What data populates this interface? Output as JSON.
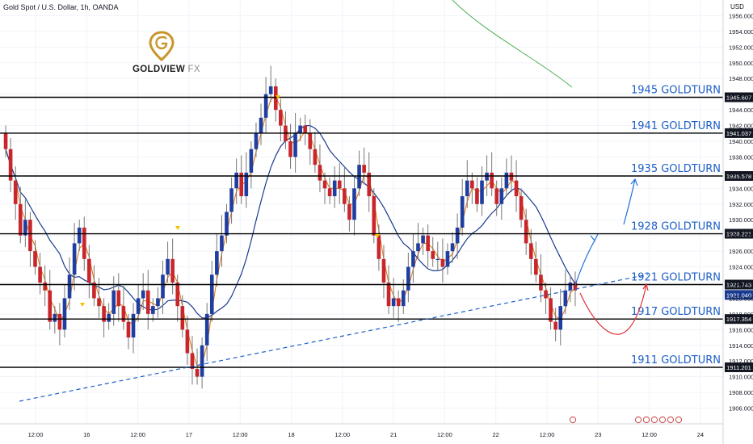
{
  "header": {
    "symbol_line": "Gold Spot / U.S. Dollar, 1h, OANDA",
    "currency": "USD"
  },
  "logo": {
    "brand_main": "GOLDVIEW",
    "brand_suffix": "FX"
  },
  "colors": {
    "bull": "#1f3ea0",
    "bear": "#c8262b",
    "ma_fast": "#e07b1a",
    "ma_slow": "#1a3a8f",
    "ma_long": "#4caf50",
    "annotation": "#1e5fc7",
    "level_line": "#000000",
    "projection_up": "#1e6fd9",
    "projection_dip": "#e0333b"
  },
  "chart_data": {
    "type": "candlestick",
    "title": "Gold Spot / U.S. Dollar, 1h, OANDA",
    "ylim": [
      1904,
      1958
    ],
    "y_ticks": [
      1906,
      1908,
      1910,
      1912,
      1914,
      1916,
      1918,
      1920,
      1922,
      1924,
      1926,
      1928,
      1930,
      1932,
      1934,
      1936,
      1938,
      1940,
      1942,
      1944,
      1946,
      1948,
      1950,
      1952,
      1954,
      1956
    ],
    "x_ticks": [
      "12:00",
      "16",
      "12:00",
      "17",
      "12:00",
      "18",
      "12:00",
      "21",
      "12:00",
      "22",
      "12:00",
      "23",
      "12:00",
      "24"
    ],
    "levels": [
      {
        "label": "1945 GOLDTURN",
        "price": "1945.607",
        "value": 1945.607
      },
      {
        "label": "1941 GOLDTURN",
        "price": "1941.037",
        "value": 1941.037
      },
      {
        "label": "1935 GOLDTURN",
        "price": "1935.578",
        "value": 1935.578
      },
      {
        "label": "1928 GOLDTURN",
        "price": "1928.221",
        "value": 1928.221
      },
      {
        "label": "1921 GOLDTURN",
        "price": "1921.743",
        "value": 1921.743
      },
      {
        "label": "1917 GOLDTURN",
        "price": "1917.354",
        "value": 1917.354
      },
      {
        "label": "1911 GOLDTURN",
        "price": "1911.201",
        "value": 1911.201
      }
    ],
    "current_price": "1921.040",
    "series_closes": [
      1939,
      1935,
      1932,
      1928,
      1930,
      1926,
      1924,
      1922,
      1921,
      1917,
      1918,
      1916,
      1920,
      1923,
      1927,
      1929,
      1925,
      1922,
      1920,
      1919,
      1917,
      1918,
      1921,
      1919,
      1917,
      1915,
      1918,
      1920,
      1921,
      1918,
      1919,
      1920,
      1923,
      1925,
      1922,
      1919,
      1916,
      1913,
      1911,
      1910,
      1914,
      1918,
      1923,
      1926,
      1928,
      1931,
      1934,
      1936,
      1933,
      1936,
      1939,
      1941,
      1943,
      1946,
      1947,
      1944,
      1942,
      1940,
      1938,
      1941,
      1942,
      1941,
      1939,
      1937,
      1935,
      1934,
      1933,
      1935,
      1934,
      1932,
      1930,
      1934,
      1937,
      1936,
      1933,
      1928,
      1925,
      1922,
      1919,
      1920,
      1919,
      1921,
      1924,
      1926,
      1927,
      1928,
      1926,
      1925,
      1925,
      1924,
      1926,
      1927,
      1929,
      1933,
      1935,
      1934,
      1932,
      1935,
      1936,
      1934,
      1932,
      1934,
      1936,
      1935,
      1933,
      1930,
      1927,
      1925,
      1923,
      1921,
      1920,
      1917,
      1916,
      1919,
      1921,
      1922,
      1921
    ]
  }
}
